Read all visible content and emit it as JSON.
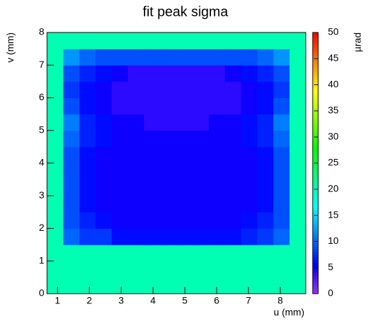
{
  "chart_data": {
    "type": "heatmap",
    "title": "fit peak sigma",
    "x_label": "u (mm)",
    "y_label": "v (mm)",
    "z_label": "µrad",
    "xlim": [
      0.67,
      8.8
    ],
    "ylim": [
      0,
      8
    ],
    "zlim": [
      0,
      50
    ],
    "xticks": [
      1,
      2,
      3,
      4,
      5,
      6,
      7,
      8
    ],
    "yticks": [
      0,
      1,
      2,
      3,
      4,
      5,
      6,
      7,
      8
    ],
    "zticks": [
      0,
      5,
      10,
      15,
      20,
      25,
      30,
      35,
      40,
      45,
      50
    ],
    "z": [
      [
        20,
        20,
        20,
        20,
        20,
        20,
        20,
        20,
        20,
        20,
        20,
        20,
        20,
        20,
        20,
        20
      ],
      [
        20,
        20,
        20,
        20,
        20,
        20,
        20,
        20,
        20,
        20,
        20,
        20,
        20,
        20,
        20,
        20
      ],
      [
        20,
        20,
        20,
        20,
        20,
        20,
        20,
        20,
        20,
        20,
        20,
        20,
        20,
        20,
        20,
        20
      ],
      [
        20,
        10,
        8,
        8,
        6,
        6,
        6,
        6,
        6,
        6,
        6,
        6,
        7,
        8,
        10,
        20
      ],
      [
        20,
        9,
        7,
        6,
        5,
        5,
        5,
        5,
        5,
        5,
        5,
        5,
        6,
        7,
        9,
        20
      ],
      [
        20,
        9,
        6,
        5,
        5,
        5,
        5,
        5,
        5,
        5,
        5,
        5,
        5,
        6,
        9,
        20
      ],
      [
        20,
        9,
        6,
        5,
        5,
        5,
        5,
        5,
        5,
        5,
        5,
        5,
        5,
        6,
        9,
        20
      ],
      [
        20,
        9,
        6,
        5,
        5,
        5,
        5,
        5,
        5,
        5,
        5,
        5,
        5,
        6,
        9,
        20
      ],
      [
        20,
        9,
        6,
        5,
        5,
        5,
        5,
        5,
        5,
        5,
        5,
        5,
        5,
        6,
        9,
        20
      ],
      [
        20,
        10,
        7,
        6,
        5,
        5,
        5,
        5,
        5,
        5,
        5,
        5,
        6,
        7,
        10,
        20
      ],
      [
        20,
        11,
        7,
        6,
        5,
        5,
        4,
        4,
        4,
        4,
        5,
        5,
        6,
        7,
        11,
        20
      ],
      [
        20,
        9,
        6,
        5,
        4,
        4,
        4,
        4,
        4,
        4,
        4,
        4,
        5,
        6,
        9,
        20
      ],
      [
        20,
        8,
        6,
        5,
        4,
        4,
        4,
        4,
        4,
        4,
        4,
        4,
        5,
        6,
        8,
        20
      ],
      [
        20,
        9,
        7,
        6,
        5,
        4,
        4,
        4,
        4,
        4,
        4,
        5,
        6,
        7,
        9,
        20
      ],
      [
        20,
        12,
        10,
        9,
        9,
        9,
        9,
        9,
        9,
        9,
        9,
        9,
        9,
        10,
        12,
        20
      ],
      [
        20,
        20,
        20,
        20,
        20,
        20,
        20,
        20,
        20,
        20,
        20,
        20,
        20,
        20,
        20,
        20
      ]
    ]
  }
}
